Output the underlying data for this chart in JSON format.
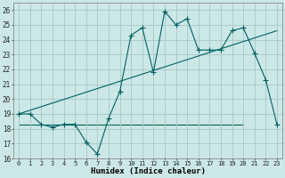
{
  "xlabel": "Humidex (Indice chaleur)",
  "xlim": [
    -0.5,
    23.5
  ],
  "ylim": [
    16,
    26.5
  ],
  "yticks": [
    16,
    17,
    18,
    19,
    20,
    21,
    22,
    23,
    24,
    25,
    26
  ],
  "xticks": [
    0,
    1,
    2,
    3,
    4,
    5,
    6,
    7,
    8,
    9,
    10,
    11,
    12,
    13,
    14,
    15,
    16,
    17,
    18,
    19,
    20,
    21,
    22,
    23
  ],
  "bg_color": "#cce8e6",
  "grid_color": "#aaccca",
  "line_color": "#006060",
  "line1_x": [
    0,
    1,
    2,
    3,
    4,
    5,
    6,
    7,
    8,
    9,
    10,
    11,
    12,
    13,
    14,
    15,
    16,
    17,
    18,
    19,
    20,
    21,
    22,
    23
  ],
  "line1_y": [
    19.0,
    19.0,
    18.3,
    18.1,
    18.3,
    18.3,
    17.1,
    16.3,
    18.7,
    20.5,
    24.3,
    24.8,
    21.8,
    25.9,
    25.0,
    25.4,
    23.3,
    23.3,
    23.3,
    24.6,
    24.8,
    23.1,
    21.3,
    18.3
  ],
  "line2_x": [
    0,
    23
  ],
  "line2_y": [
    19.0,
    24.6
  ],
  "line3_x": [
    0,
    20
  ],
  "line3_y": [
    18.3,
    18.3
  ]
}
